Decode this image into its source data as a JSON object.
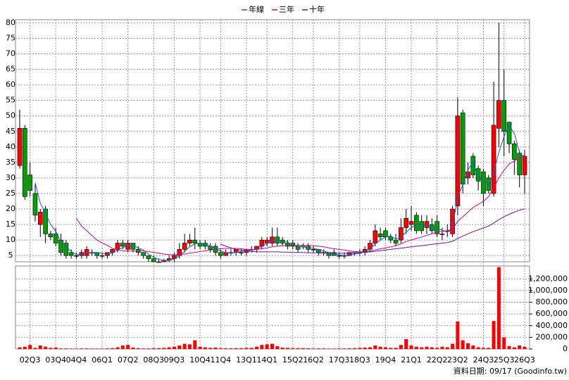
{
  "chart_data": {
    "type": "candlestick",
    "categories": [
      null,
      null,
      "02Q3",
      null,
      null,
      null,
      null,
      "03Q4",
      null,
      null,
      null,
      "04Q4",
      null,
      null,
      null,
      null,
      "06Q1",
      null,
      null,
      null,
      null,
      "07Q2",
      null,
      null,
      null,
      null,
      "08Q3",
      null,
      null,
      null,
      "09Q3",
      null,
      null,
      null,
      null,
      "10Q4",
      null,
      null,
      null,
      "11Q4",
      null,
      null,
      null,
      null,
      "13Q1",
      null,
      null,
      null,
      "14Q1",
      null,
      null,
      null,
      null,
      "15Q2",
      null,
      null,
      null,
      "16Q2",
      null,
      null,
      null,
      null,
      "17Q3",
      null,
      null,
      null,
      "18Q3",
      null,
      null,
      null,
      null,
      "19Q4",
      null,
      null,
      null,
      null,
      "21Q1",
      null,
      null,
      null,
      null,
      "22Q2",
      null,
      null,
      null,
      "23Q2",
      null,
      null,
      null,
      null,
      "24Q3",
      null,
      null,
      null,
      "25Q3",
      null,
      null,
      null,
      "26Q3"
    ],
    "open": [
      34,
      46,
      31,
      25,
      15,
      20,
      12,
      12,
      10,
      9,
      6,
      5,
      5,
      5,
      6,
      6,
      5,
      5,
      6,
      7,
      9,
      7,
      9,
      7,
      6,
      5,
      4,
      3,
      3,
      3.5,
      4,
      5,
      7,
      9,
      10,
      9,
      9,
      8,
      8,
      6,
      5,
      6,
      6,
      6,
      6,
      7,
      7,
      8,
      9,
      9,
      11,
      10,
      9,
      9,
      8,
      8,
      8,
      7,
      7,
      6,
      6,
      6,
      5,
      5,
      5,
      6,
      6,
      6,
      7,
      9,
      12,
      13,
      11,
      10,
      10,
      14,
      15,
      18,
      16,
      14,
      15,
      16,
      12,
      13,
      12,
      21,
      51,
      30,
      37,
      33,
      32,
      30,
      25,
      46,
      55,
      48,
      41,
      38,
      31
    ],
    "high": [
      52,
      47,
      35,
      28,
      20,
      21,
      13,
      14,
      12,
      10,
      7,
      6,
      7,
      8,
      7,
      6,
      6,
      6,
      7,
      10,
      10,
      10,
      9,
      8,
      6,
      5,
      5,
      4,
      4,
      5,
      6,
      9,
      12,
      12,
      14,
      10,
      10,
      9,
      9,
      7,
      7,
      7,
      7,
      7,
      7,
      8,
      8,
      11,
      11,
      14,
      14,
      11,
      10,
      10,
      9,
      9,
      9,
      8,
      7,
      7,
      6,
      7,
      6,
      6,
      6,
      6,
      7,
      8,
      10,
      15,
      14,
      14,
      12,
      12,
      17,
      20,
      21,
      19,
      18,
      18,
      17,
      18,
      14,
      15,
      21,
      56,
      52,
      35,
      38,
      34,
      33,
      31,
      61,
      80,
      65,
      48,
      42,
      39,
      39
    ],
    "low": [
      33,
      23,
      24,
      16,
      11,
      9,
      10,
      8,
      5,
      4,
      4,
      4,
      4,
      4,
      5,
      4,
      4,
      4,
      5,
      6,
      7,
      6,
      6,
      5,
      4,
      3,
      3,
      3,
      3,
      3,
      3,
      4,
      6,
      8,
      7,
      7,
      7,
      6,
      5,
      4,
      5,
      5,
      5,
      5,
      5,
      6,
      6,
      7,
      8,
      8,
      8,
      8,
      7,
      7,
      6,
      7,
      6,
      6,
      5,
      5,
      4,
      5,
      4,
      4,
      5,
      5,
      5,
      5,
      6,
      8,
      10,
      10,
      9,
      8,
      9,
      12,
      13,
      12,
      12,
      12,
      12,
      11,
      10,
      11,
      11,
      18,
      25,
      28,
      30,
      26,
      21,
      25,
      24,
      40,
      37,
      38,
      31,
      27,
      25
    ],
    "close": [
      46,
      24,
      26,
      18,
      19,
      12,
      11,
      9,
      6,
      5,
      5,
      5,
      6,
      7,
      6,
      5,
      5,
      6,
      7,
      9,
      8,
      9,
      7,
      6,
      5,
      4,
      3,
      3,
      3.5,
      4,
      5,
      7,
      9,
      10,
      9,
      8,
      8,
      7,
      6,
      5,
      6,
      6,
      7,
      6,
      7,
      7,
      8,
      10,
      10,
      11,
      9,
      9,
      8,
      8,
      7,
      8,
      7,
      7,
      6,
      6,
      5,
      5,
      5,
      5,
      6,
      6,
      6,
      7,
      9,
      13,
      11,
      11,
      10,
      9,
      14,
      17,
      16,
      13,
      13,
      16,
      13,
      12,
      12,
      13,
      20,
      50,
      28,
      32,
      31,
      29,
      25,
      26,
      47,
      55,
      45,
      41,
      36,
      31,
      37
    ],
    "up_color": "#ff0000",
    "down_color": "#00a000",
    "series": [
      {
        "name": "年線",
        "color": "#1060e0",
        "values": [
          null,
          null,
          null,
          28.5,
          21.8,
          18.8,
          15,
          12.8,
          9.5,
          7.8,
          6.3,
          5.3,
          5.3,
          5.8,
          6,
          6,
          5.8,
          5.5,
          5.8,
          6.8,
          7.5,
          8.3,
          8.3,
          7.5,
          6.8,
          5.5,
          4.5,
          3.8,
          3.4,
          3.4,
          3.9,
          4.9,
          6.3,
          7.8,
          8.8,
          9,
          8.8,
          8,
          7.3,
          6.5,
          6,
          5.8,
          6,
          6.3,
          6.5,
          6.8,
          7,
          8,
          8.8,
          9.8,
          10,
          9.8,
          9.3,
          8.5,
          8,
          7.8,
          7.5,
          7.3,
          7,
          6.5,
          6,
          5.5,
          5.3,
          5,
          5.3,
          5.5,
          5.8,
          6.3,
          7,
          8.8,
          10,
          11,
          11.3,
          10.3,
          11,
          12.5,
          14,
          15,
          14.8,
          14.5,
          13.8,
          13.5,
          13.3,
          12.5,
          14.3,
          23.8,
          27.8,
          32.5,
          35.3,
          30,
          29.3,
          27.8,
          31.8,
          38.3,
          43.3,
          47,
          44.3,
          38.3,
          36.3
        ]
      },
      {
        "name": "三年",
        "color": "#e0007a",
        "values": [
          null,
          null,
          null,
          null,
          null,
          null,
          null,
          null,
          null,
          null,
          null,
          17,
          14.5,
          13,
          11.5,
          10,
          9,
          8.3,
          7.3,
          6.8,
          6.5,
          6.5,
          6.5,
          6.5,
          6.5,
          6.3,
          6,
          5.8,
          5.5,
          5.3,
          5.3,
          5.3,
          5.5,
          5.8,
          6,
          6.3,
          6.5,
          6.8,
          7,
          7.2,
          7.3,
          7.3,
          7.3,
          7.2,
          7,
          7,
          7,
          7.2,
          7.5,
          7.8,
          8,
          8.2,
          8.3,
          8.3,
          8.3,
          8.3,
          8.3,
          8.2,
          8,
          7.8,
          7.5,
          7.2,
          7,
          6.8,
          6.5,
          6.3,
          6.2,
          6.2,
          6.3,
          6.8,
          7.2,
          7.5,
          7.8,
          8.2,
          8.8,
          9.5,
          10,
          10.5,
          11,
          11.5,
          12,
          12.5,
          12.8,
          13,
          13.5,
          16,
          17.5,
          19,
          20.5,
          21.5,
          22.5,
          24,
          27,
          30,
          32.5,
          34.5,
          35.5,
          36.5,
          37.5
        ]
      },
      {
        "name": "十年",
        "color": "#7010b0",
        "values": [
          null,
          null,
          null,
          null,
          null,
          null,
          null,
          null,
          null,
          null,
          null,
          null,
          null,
          null,
          null,
          null,
          null,
          null,
          null,
          null,
          null,
          null,
          null,
          null,
          null,
          null,
          null,
          null,
          null,
          null,
          null,
          null,
          null,
          null,
          null,
          null,
          null,
          null,
          null,
          8.7,
          8,
          7.5,
          7,
          6.8,
          6.5,
          6.3,
          6.2,
          6.2,
          6.2,
          6.2,
          6.2,
          6.1,
          6.1,
          6,
          6,
          6,
          5.9,
          5.9,
          5.9,
          5.8,
          5.8,
          5.8,
          5.8,
          5.8,
          5.8,
          5.9,
          6,
          6.1,
          6.2,
          6.4,
          6.6,
          6.8,
          7,
          7.2,
          7.4,
          7.6,
          7.8,
          8,
          8.2,
          8.4,
          8.6,
          8.8,
          9,
          9.2,
          9.6,
          10.5,
          11.3,
          12,
          12.7,
          13.3,
          13.9,
          14.5,
          15.5,
          16.6,
          17.5,
          18.3,
          19,
          19.6,
          20.1
        ]
      }
    ],
    "volume": {
      "color": "#ff0000",
      "values": [
        30000,
        40000,
        70000,
        20000,
        60000,
        40000,
        20000,
        25000,
        10000,
        10000,
        8000,
        8000,
        10000,
        10000,
        8000,
        8000,
        8000,
        10000,
        15000,
        30000,
        60000,
        70000,
        25000,
        15000,
        10000,
        10000,
        15000,
        15000,
        20000,
        30000,
        40000,
        60000,
        90000,
        80000,
        150000,
        40000,
        30000,
        20000,
        25000,
        15000,
        12000,
        12000,
        15000,
        15000,
        20000,
        20000,
        40000,
        70000,
        80000,
        90000,
        50000,
        25000,
        20000,
        15000,
        15000,
        15000,
        12000,
        10000,
        10000,
        10000,
        8000,
        8000,
        10000,
        10000,
        12000,
        15000,
        20000,
        25000,
        30000,
        60000,
        40000,
        30000,
        20000,
        20000,
        70000,
        170000,
        60000,
        40000,
        30000,
        40000,
        30000,
        20000,
        40000,
        30000,
        90000,
        470000,
        150000,
        100000,
        60000,
        30000,
        20000,
        20000,
        480000,
        1400000,
        200000,
        50000,
        30000,
        60000,
        40000
      ]
    },
    "ylim": [
      3,
      81
    ],
    "yticks": [
      5,
      10,
      15,
      20,
      25,
      30,
      35,
      40,
      45,
      50,
      55,
      60,
      65,
      70,
      75,
      80
    ],
    "y2lim": [
      0,
      1420000
    ],
    "y2ticks": [
      0,
      {
        "value": 200000,
        "label": "200,000"
      },
      {
        "value": 400000,
        "label": "400,000"
      },
      {
        "value": 600000,
        "label": "600,000"
      },
      {
        "value": 800000,
        "label": "800,000"
      },
      {
        "value": 1000000,
        "label": "1,000,000"
      },
      {
        "value": 1200000,
        "label": "1,200,000"
      }
    ],
    "grid": true,
    "legend": "top",
    "footnote": "資料日期: 09/17  (Goodinfo.tw)"
  }
}
